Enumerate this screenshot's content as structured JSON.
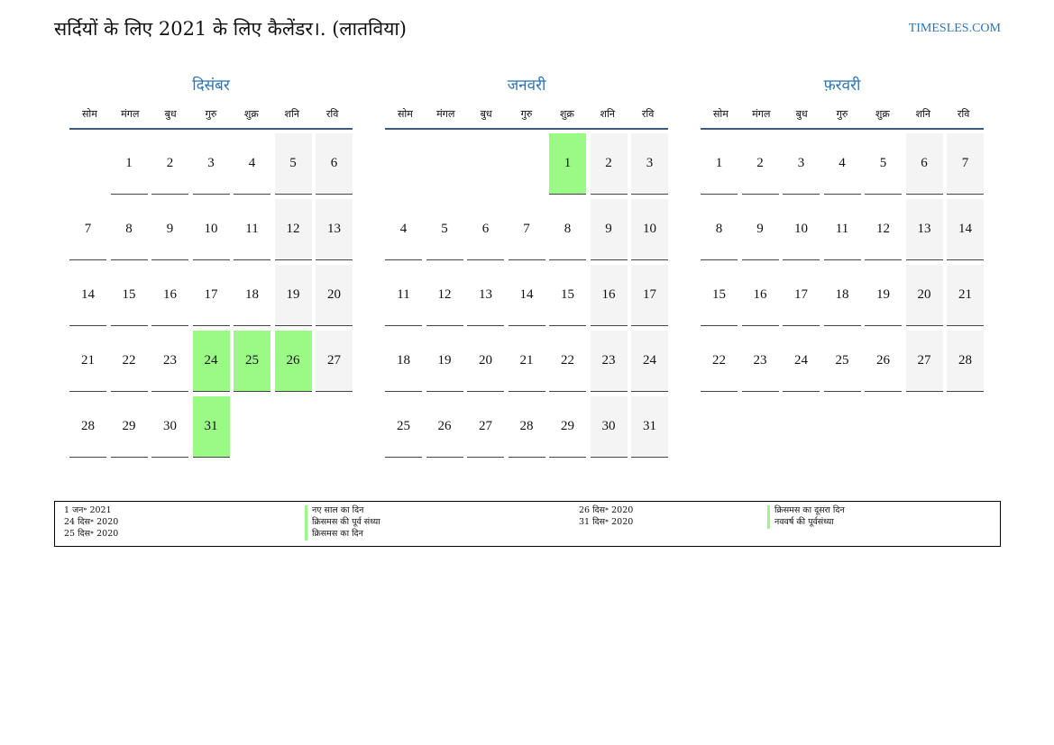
{
  "title": "सर्दियों के लिए 2021 के लिए कैलेंडर।. (लातविया)",
  "site": "TIMESLES.COM",
  "weekdays": [
    "सोम",
    "मंगल",
    "बुध",
    "गुरु",
    "शुक्र",
    "शनि",
    "रवि"
  ],
  "colors": {
    "accent": "#2e74b5",
    "holiday": "#9bfa86",
    "weekend": "#f4f4f4"
  },
  "months": [
    {
      "name": "दिसंबर",
      "days": [
        null,
        1,
        2,
        3,
        4,
        5,
        6,
        7,
        8,
        9,
        10,
        11,
        12,
        13,
        14,
        15,
        16,
        17,
        18,
        19,
        20,
        21,
        22,
        23,
        24,
        25,
        26,
        27,
        28,
        29,
        30,
        31
      ],
      "holidays": [
        24,
        25,
        26,
        31
      ]
    },
    {
      "name": "जनवरी",
      "days": [
        null,
        null,
        null,
        null,
        1,
        2,
        3,
        4,
        5,
        6,
        7,
        8,
        9,
        10,
        11,
        12,
        13,
        14,
        15,
        16,
        17,
        18,
        19,
        20,
        21,
        22,
        23,
        24,
        25,
        26,
        27,
        28,
        29,
        30,
        31
      ],
      "holidays": [
        1
      ]
    },
    {
      "name": "फ़रवरी",
      "days": [
        1,
        2,
        3,
        4,
        5,
        6,
        7,
        8,
        9,
        10,
        11,
        12,
        13,
        14,
        15,
        16,
        17,
        18,
        19,
        20,
        21,
        22,
        23,
        24,
        25,
        26,
        27,
        28
      ],
      "holidays": []
    }
  ],
  "legend": [
    {
      "date": "1 जन॰ 2021",
      "name": "नए साल का दिन"
    },
    {
      "date": "24 दिस॰ 2020",
      "name": "क्रिसमस की पूर्व संध्या"
    },
    {
      "date": "25 दिस॰ 2020",
      "name": "क्रिसमस का दिन"
    },
    {
      "date": "26 दिस॰ 2020",
      "name": "क्रिसमस का दूसरा दिन"
    },
    {
      "date": "31 दिस॰ 2020",
      "name": "नववर्ष की पूर्वसंध्या"
    }
  ]
}
